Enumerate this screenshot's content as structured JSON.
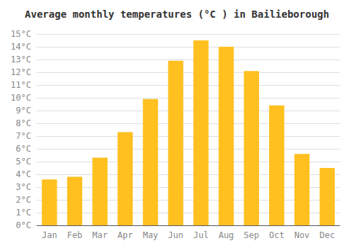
{
  "chart_data": {
    "type": "bar",
    "title": "Average monthly temperatures (°C ) in Bailieborough",
    "categories": [
      "Jan",
      "Feb",
      "Mar",
      "Apr",
      "May",
      "Jun",
      "Jul",
      "Aug",
      "Sep",
      "Oct",
      "Nov",
      "Dec"
    ],
    "values": [
      3.6,
      3.8,
      5.3,
      7.3,
      9.9,
      12.9,
      14.5,
      14.0,
      12.1,
      9.4,
      5.6,
      4.5
    ],
    "color": "#FFC020",
    "ylim": [
      0,
      15
    ],
    "yticks": [
      {
        "value": 0,
        "label": "0°C"
      },
      {
        "value": 1,
        "label": "1°C"
      },
      {
        "value": 2,
        "label": "2°C"
      },
      {
        "value": 3,
        "label": "3°C"
      },
      {
        "value": 4,
        "label": "4°C"
      },
      {
        "value": 5,
        "label": "5°C"
      },
      {
        "value": 6,
        "label": "6°C"
      },
      {
        "value": 7,
        "label": "7°C"
      },
      {
        "value": 8,
        "label": "8°C"
      },
      {
        "value": 9,
        "label": "9°C"
      },
      {
        "value": 10,
        "label": "10°C"
      },
      {
        "value": 11,
        "label": "11°C"
      },
      {
        "value": 12,
        "label": "12°C"
      },
      {
        "value": 13,
        "label": "13°C"
      },
      {
        "value": 14,
        "label": "14°C"
      },
      {
        "value": 15,
        "label": "15°C"
      }
    ],
    "grid": true
  }
}
